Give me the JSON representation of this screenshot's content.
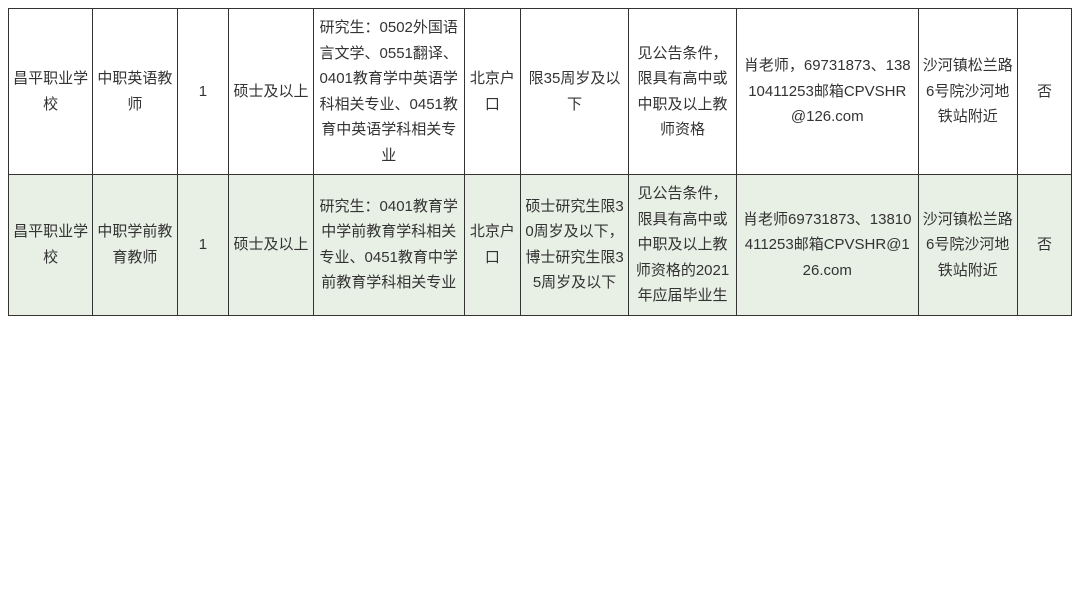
{
  "table": {
    "background_odd": "#ffffff",
    "background_even": "#e8efe5",
    "border_color": "#333333",
    "text_color": "#333333",
    "fontsize": 15,
    "rows": [
      {
        "c1": "昌平职业学校",
        "c2": "中职英语教师",
        "c3": "1",
        "c4": "硕士及以上",
        "c5": "研究生：0502外国语言文学、0551翻译、0401教育学中英语学科相关专业、0451教育中英语学科相关专业",
        "c6": "北京户口",
        "c7": "限35周岁及以下",
        "c8": "见公告条件，限具有高中或中职及以上教师资格",
        "c9": "肖老师，69731873、13810411253邮箱CPVSHR@126.com",
        "c10": "沙河镇松兰路6号院沙河地铁站附近",
        "c11": "否"
      },
      {
        "c1": "昌平职业学校",
        "c2": "中职学前教育教师",
        "c3": "1",
        "c4": "硕士及以上",
        "c5": "研究生：0401教育学中学前教育学科相关专业、0451教育中学前教育学科相关专业",
        "c6": "北京户口",
        "c7": "硕士研究生限30周岁及以下，博士研究生限35周岁及以下",
        "c8": "见公告条件，限具有高中或中职及以上教师资格的2021年应届毕业生",
        "c9": "肖老师69731873、13810411253邮箱CPVSHR@126.com",
        "c10": "沙河镇松兰路6号院沙河地铁站附近",
        "c11": "否"
      }
    ]
  }
}
